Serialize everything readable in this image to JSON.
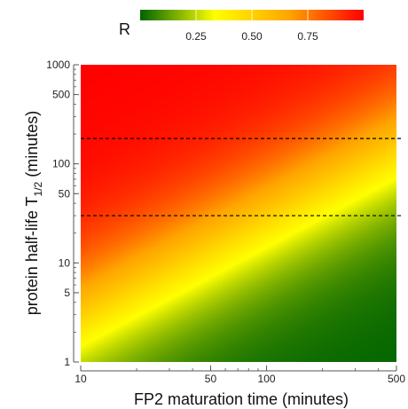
{
  "chart_data": {
    "type": "heatmap",
    "colorbar": {
      "title": "R",
      "ticks": [
        0.25,
        0.5,
        0.75
      ],
      "tick_labels": [
        "0.25",
        "0.50",
        "0.75"
      ],
      "range": [
        0,
        1
      ],
      "colors": [
        "#006400",
        "#ffff00",
        "#ffa500",
        "#ff0000"
      ]
    },
    "x_axis": {
      "label": "FP2 maturation time (minutes)",
      "scale": "log",
      "range": [
        10,
        500
      ],
      "ticks": [
        10,
        50,
        100,
        500
      ],
      "tick_labels": [
        "10",
        "50",
        "100",
        "500"
      ]
    },
    "y_axis": {
      "label_main": "protein half-life T",
      "label_sub": "1/2",
      "label_unit": " (minutes)",
      "scale": "log",
      "range": [
        1,
        1000
      ],
      "ticks": [
        1,
        5,
        10,
        50,
        100,
        500,
        1000
      ],
      "tick_labels": [
        "1",
        "5",
        "10",
        "50",
        "100",
        "500",
        "1000"
      ]
    },
    "reference_lines": [
      {
        "orientation": "horizontal",
        "y": 180,
        "style": "dashed"
      },
      {
        "orientation": "horizontal",
        "y": 30,
        "style": "dashed"
      }
    ]
  }
}
